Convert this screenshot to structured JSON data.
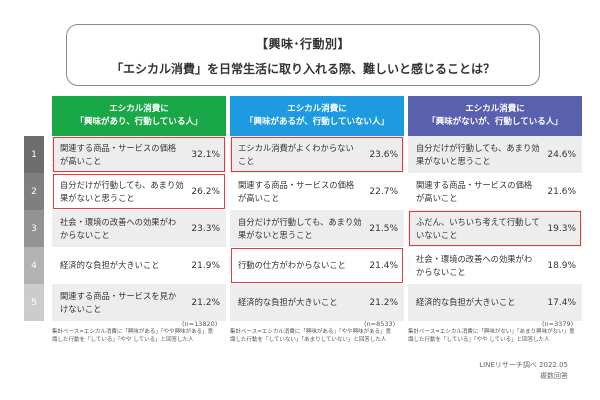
{
  "title": {
    "line1": "【興味･行動別】",
    "line2": "「エシカル消費」を日常生活に取り入れる際、難しいと感じることは？"
  },
  "ranks": [
    "1",
    "2",
    "3",
    "4",
    "5"
  ],
  "colors": {
    "rank_bg": [
      "#6d6d6d",
      "#7f7f7f",
      "#939393",
      "#b2b2b2",
      "#cccccc"
    ],
    "col1_header": "#1aa748",
    "col2_header": "#1e9be0",
    "col3_header": "#5960ad",
    "highlight": "#e23b3b",
    "row_odd": "#ededed",
    "row_even": "#ffffff"
  },
  "chart_data": {
    "type": "table",
    "columns": [
      {
        "header_line1": "エシカル消費に",
        "header_line2": "「興味があり、行動している人」",
        "n": "(n=13820)",
        "footnote_line1": "集計ベース=エシカル消費に「興味がある」「やや興味がある」意",
        "footnote_line2": "識した行動を「している」「やや している」と回答した人",
        "rows": [
          {
            "rank": 1,
            "label_line1": "関連する商品・サービスの価格",
            "label_line2": "が高いこと",
            "value": "32.1%",
            "highlight": true
          },
          {
            "rank": 2,
            "label_line1": "自分だけが行動しても、あまり効",
            "label_line2": "果がないと思うこと",
            "value": "26.2%",
            "highlight": true
          },
          {
            "rank": 3,
            "label_line1": "社会・環境の改善への効果がわ",
            "label_line2": "からないこと",
            "value": "23.3%",
            "highlight": false
          },
          {
            "rank": 4,
            "label_line1": "経済的な負担が大きいこと",
            "label_line2": "",
            "value": "21.9%",
            "highlight": false
          },
          {
            "rank": 5,
            "label_line1": "関連する商品・サービスを見か",
            "label_line2": "けないこと",
            "value": "21.2%",
            "highlight": false
          }
        ]
      },
      {
        "header_line1": "エシカル消費に",
        "header_line2": "「興味があるが、行動していない人」",
        "n": "(n=8533)",
        "footnote_line1": "集計ベース=エシカル消費に「興味がある」「やや興味がある」意",
        "footnote_line2": "識した行動を「していない」「あまりしていない」と回答した人",
        "rows": [
          {
            "rank": 1,
            "label_line1": "エシカル消費がよくわからない",
            "label_line2": "こと",
            "value": "23.6%",
            "highlight": true
          },
          {
            "rank": 2,
            "label_line1": "関連する商品・サービスの価格",
            "label_line2": "が高いこと",
            "value": "22.7%",
            "highlight": false
          },
          {
            "rank": 3,
            "label_line1": "自分だけが行動しても、あまり効",
            "label_line2": "果がないと思うこと",
            "value": "21.5%",
            "highlight": false
          },
          {
            "rank": 4,
            "label_line1": "行動の仕方がわからないこと",
            "label_line2": "",
            "value": "21.4%",
            "highlight": true
          },
          {
            "rank": 5,
            "label_line1": "経済的な負担が大きいこと",
            "label_line2": "",
            "value": "21.2%",
            "highlight": false
          }
        ]
      },
      {
        "header_line1": "エシカル消費に",
        "header_line2": "「興味がないが、行動している人」",
        "n": "(n=3379)",
        "footnote_line1": "集計ベース=エシカル消費に「興味がない」「あまり興味がない」意",
        "footnote_line2": "識した行動を「している」「やや している」と回答した人",
        "rows": [
          {
            "rank": 1,
            "label_line1": "自分だけが行動しても、あまり効",
            "label_line2": "果がないと思うこと",
            "value": "24.6%",
            "highlight": false
          },
          {
            "rank": 2,
            "label_line1": "関連する商品・サービスの価格",
            "label_line2": "が高いこと",
            "value": "21.6%",
            "highlight": false
          },
          {
            "rank": 3,
            "label_line1": "ふだん、いちいち考えて行動して",
            "label_line2": "いないこと",
            "value": "19.3%",
            "highlight": true
          },
          {
            "rank": 4,
            "label_line1": "社会・環境の改善への効果がわ",
            "label_line2": "からないこと",
            "value": "18.9%",
            "highlight": false
          },
          {
            "rank": 5,
            "label_line1": "経済的な負担が大きいこと",
            "label_line2": "",
            "value": "17.4%",
            "highlight": false
          }
        ]
      }
    ]
  },
  "source": {
    "line1": "LINEリサーチ調べ 2022.05",
    "line2": "複数回答"
  }
}
